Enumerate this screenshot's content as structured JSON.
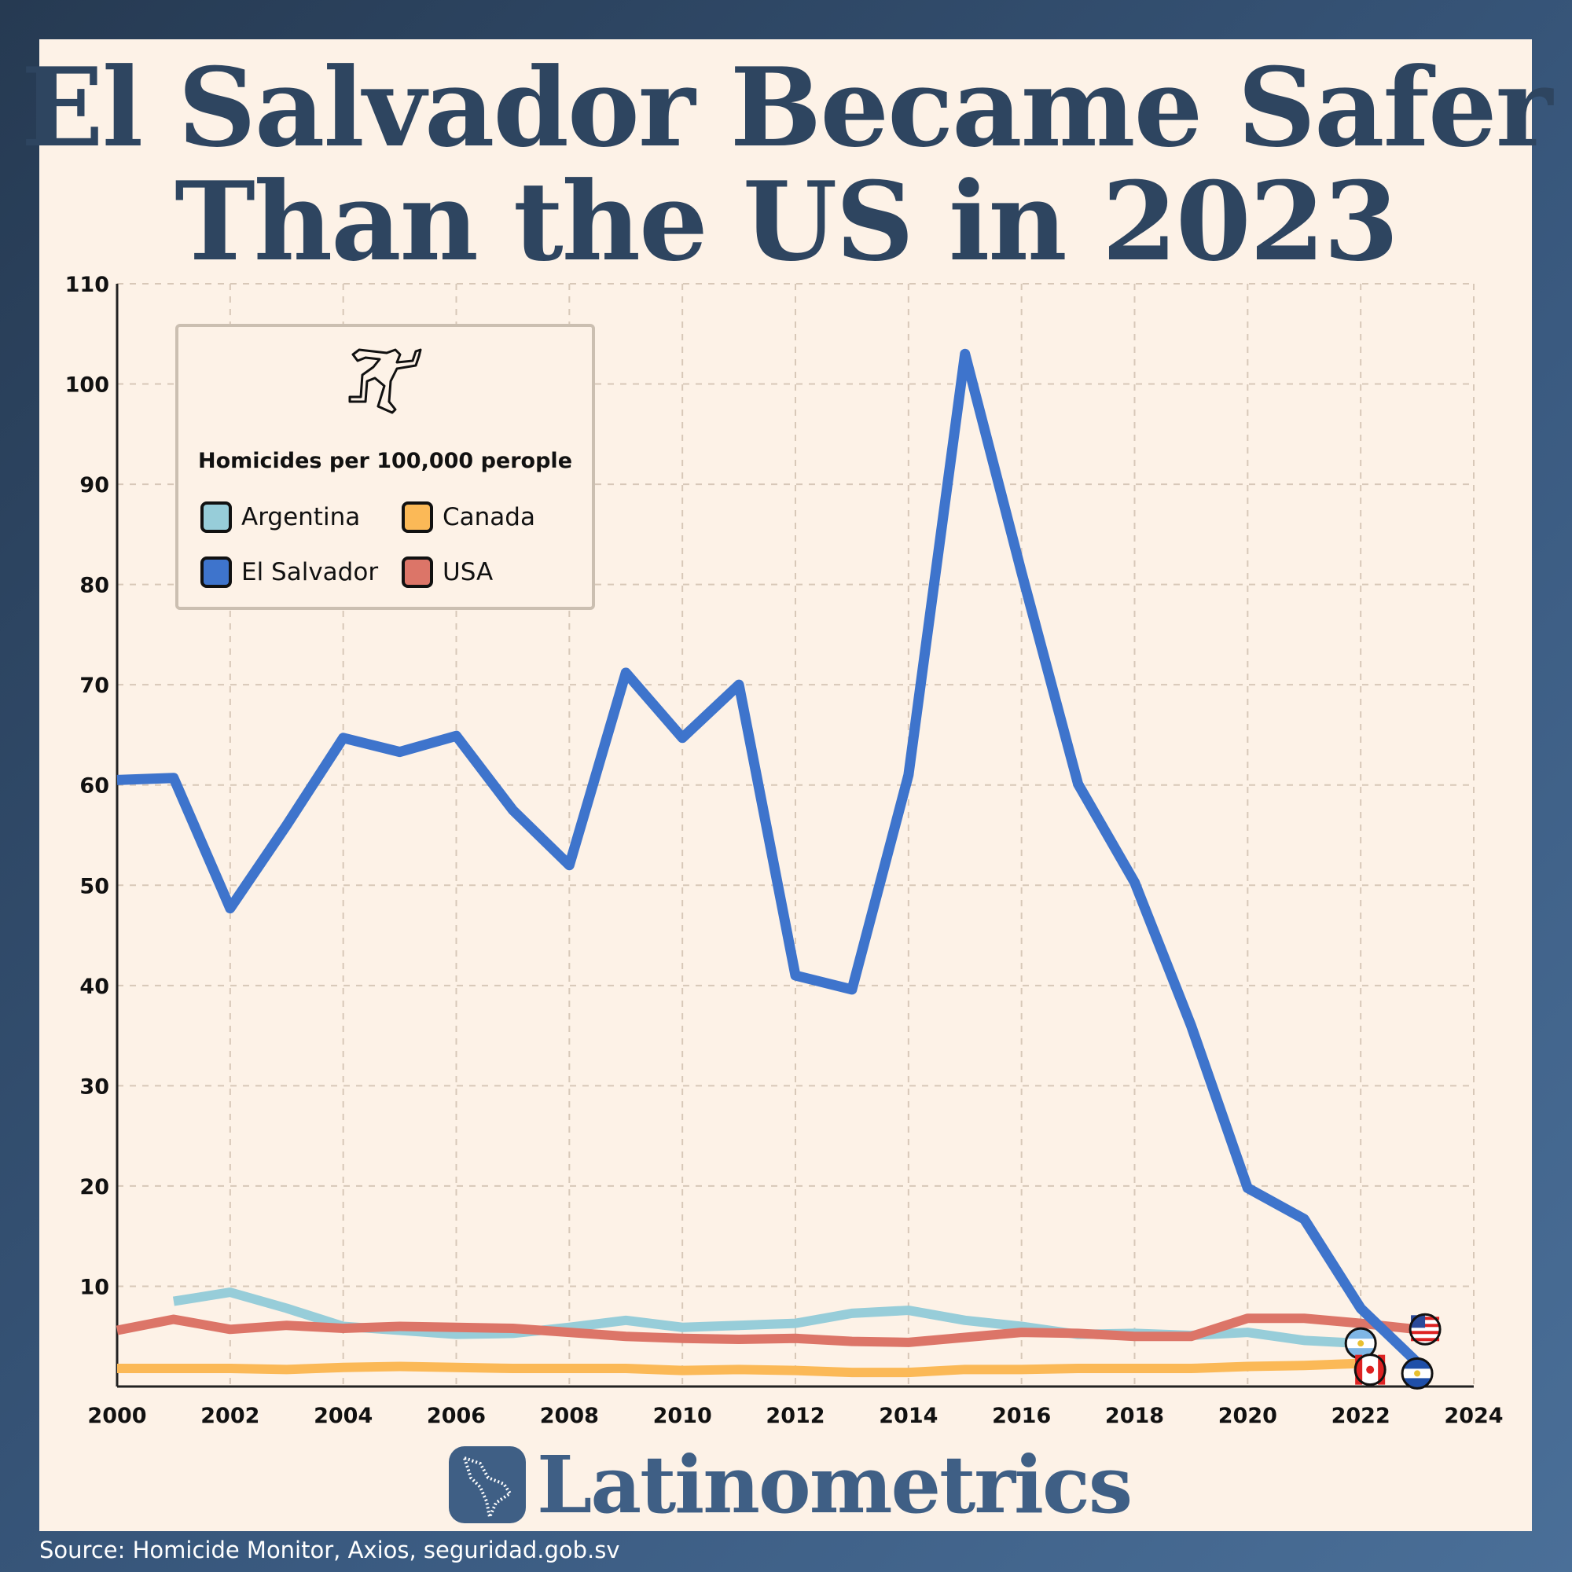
{
  "title_line1": "El Salvador Became Safer",
  "title_line2": "Than the US in 2023",
  "brand": "Latinometrics",
  "source": "Source:  Homicide Monitor, Axios, seguridad.gob.sv",
  "chart_data": {
    "type": "line",
    "title": "El Salvador Became Safer Than the US in 2023",
    "legend_title": "Homicides per 100,000 perople",
    "legend_placement": "top-left",
    "xlim": [
      2000,
      2024
    ],
    "ylim": [
      0,
      110
    ],
    "x_ticks": [
      "2000",
      "2002",
      "2004",
      "2006",
      "2008",
      "2010",
      "2012",
      "2014",
      "2016",
      "2018",
      "2020",
      "2022",
      "2024"
    ],
    "y_ticks": [
      "10",
      "20",
      "30",
      "40",
      "50",
      "60",
      "70",
      "80",
      "90",
      "100",
      "110"
    ],
    "grid": true,
    "series": [
      {
        "name": "Argentina",
        "color": "#97cdd9",
        "flag": "argentina-flag",
        "x_start": 2001,
        "values": [
          8.5,
          9.4,
          7.8,
          6.0,
          5.6,
          5.2,
          5.3,
          5.9,
          6.6,
          5.9,
          6.1,
          6.3,
          7.3,
          7.6,
          6.6,
          6.0,
          5.2,
          5.3,
          5.1,
          5.4,
          4.6,
          4.3
        ]
      },
      {
        "name": "Canada",
        "color": "#fbb957",
        "flag": "canada-flag",
        "x_start": 2000,
        "values": [
          1.8,
          1.8,
          1.8,
          1.7,
          1.9,
          2.0,
          1.9,
          1.8,
          1.8,
          1.8,
          1.6,
          1.7,
          1.6,
          1.4,
          1.4,
          1.7,
          1.7,
          1.8,
          1.8,
          1.8,
          2.0,
          2.1,
          2.3
        ]
      },
      {
        "name": "USA",
        "color": "#dc7568",
        "flag": "usa-flag",
        "x_start": 2000,
        "values": [
          5.6,
          6.7,
          5.7,
          6.1,
          5.8,
          6.0,
          5.9,
          5.8,
          5.4,
          5.0,
          4.8,
          4.7,
          4.8,
          4.5,
          4.4,
          4.9,
          5.4,
          5.3,
          5.0,
          5.0,
          6.8,
          6.8,
          6.3,
          5.7
        ]
      },
      {
        "name": "El Salvador",
        "color": "#3e74cc",
        "flag": "el-salvador-flag",
        "x_start": 2000,
        "values": [
          60.5,
          60.7,
          47.7,
          56.0,
          64.7,
          63.3,
          64.9,
          57.5,
          52.0,
          71.2,
          64.7,
          70.0,
          41.0,
          39.6,
          61.0,
          103.0,
          81.2,
          60.1,
          50.3,
          36.0,
          19.8,
          16.7,
          7.8,
          2.4
        ]
      }
    ]
  }
}
